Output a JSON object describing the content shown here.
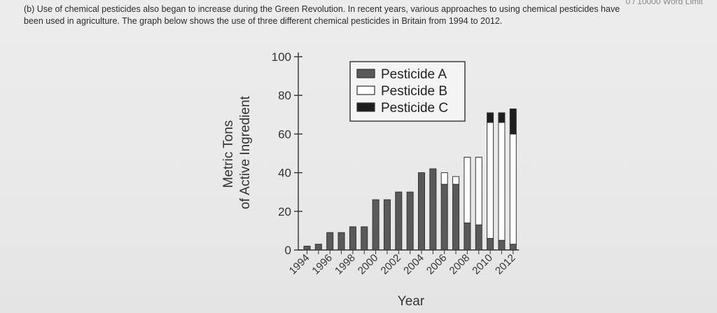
{
  "header": {
    "word_limit": "0 / 10000 Word Limit"
  },
  "question": {
    "line1": "(b) Use of chemical pesticides also began to increase during the Green Revolution. In recent years, various approaches to using chemical pesticides have",
    "line2": "been used in agriculture. The graph below shows the use of three different chemical pesticides in Britain from 1994 to 2012."
  },
  "chart_data": {
    "type": "bar",
    "stacked": true,
    "categories": [
      "1994",
      "1995",
      "1996",
      "1997",
      "1998",
      "1999",
      "2000",
      "2001",
      "2002",
      "2003",
      "2004",
      "2005",
      "2006",
      "2007",
      "2008",
      "2009",
      "2010",
      "2011",
      "2012"
    ],
    "x_tick_labels": [
      "1994",
      "1996",
      "1998",
      "2000",
      "2002",
      "2004",
      "2006",
      "2008",
      "2010",
      "2012"
    ],
    "series": [
      {
        "name": "Pesticide A",
        "color": "#5a5a5a",
        "values": [
          2,
          3,
          9,
          9,
          12,
          12,
          26,
          26,
          30,
          30,
          40,
          42,
          34,
          34,
          14,
          13,
          6,
          5,
          3
        ]
      },
      {
        "name": "Pesticide B",
        "color": "#ffffff",
        "values": [
          0,
          0,
          0,
          0,
          0,
          0,
          0,
          0,
          0,
          0,
          0,
          0,
          6,
          4,
          34,
          35,
          60,
          61,
          57
        ]
      },
      {
        "name": "Pesticide C",
        "color": "#1e1e1e",
        "values": [
          0,
          0,
          0,
          0,
          0,
          0,
          0,
          0,
          0,
          0,
          0,
          0,
          0,
          0,
          0,
          0,
          5,
          5,
          13
        ]
      }
    ],
    "xlabel": "Year",
    "ylabel_line1": "Metric Tons",
    "ylabel_line2": "of Active Ingredient",
    "ylim": [
      0,
      100
    ],
    "yticks": [
      0,
      20,
      40,
      60,
      80,
      100
    ],
    "legend_position": "top-right"
  }
}
